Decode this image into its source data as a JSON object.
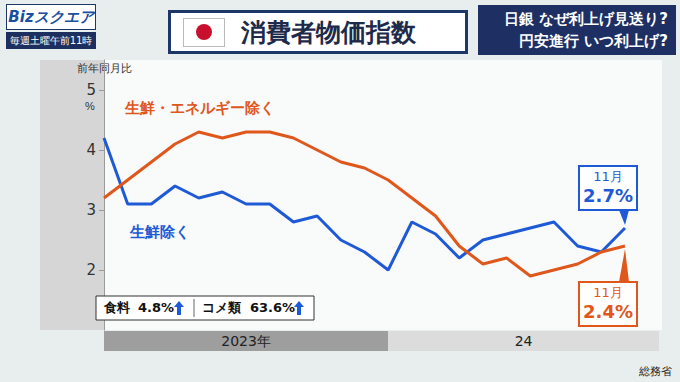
{
  "header": {
    "logo": "Bizスクエア",
    "schedule": "毎週土曜午前11時",
    "topics": [
      "日銀 なぜ利上げ見送り?",
      "円安進行 いつ利上げ?"
    ]
  },
  "chart_data": {
    "type": "line",
    "title": "消費者物価指数",
    "ylabel": "前年同月比",
    "y_unit": "%",
    "categories": [
      "2023年",
      null,
      null,
      null,
      null,
      null,
      null,
      null,
      null,
      null,
      null,
      null,
      "24",
      null,
      null,
      null,
      null,
      null,
      null,
      null,
      null,
      null,
      null
    ],
    "series": [
      {
        "name": "生鮮除く",
        "color": "#1f5ad6",
        "values": [
          4.2,
          3.1,
          3.1,
          3.4,
          3.2,
          3.3,
          3.1,
          3.1,
          2.8,
          2.9,
          2.5,
          2.3,
          2.0,
          2.8,
          2.6,
          2.2,
          2.5,
          2.6,
          2.7,
          2.8,
          2.4,
          2.3,
          2.7
        ]
      },
      {
        "name": "生鮮・エネルギー除く",
        "color": "#e0571c",
        "values": [
          3.2,
          3.5,
          3.8,
          4.1,
          4.3,
          4.2,
          4.3,
          4.3,
          4.2,
          4.0,
          3.8,
          3.7,
          3.5,
          3.2,
          2.9,
          2.4,
          2.1,
          2.2,
          1.9,
          2.0,
          2.1,
          2.3,
          2.4
        ]
      }
    ],
    "ylim": [
      1,
      5.5
    ],
    "yticks": [
      2,
      3,
      4,
      5
    ],
    "grid": false,
    "annotations": [
      {
        "series": "生鮮除く",
        "text": "11月",
        "label": "2.7%"
      },
      {
        "series": "生鮮・エネルギー除く",
        "text": "11月",
        "label": "2.4%"
      }
    ],
    "notes": [
      {
        "text": "食料",
        "label": "4.8%"
      },
      {
        "text": "コメ類",
        "label": "63.6%"
      }
    ],
    "source": "総務省"
  }
}
